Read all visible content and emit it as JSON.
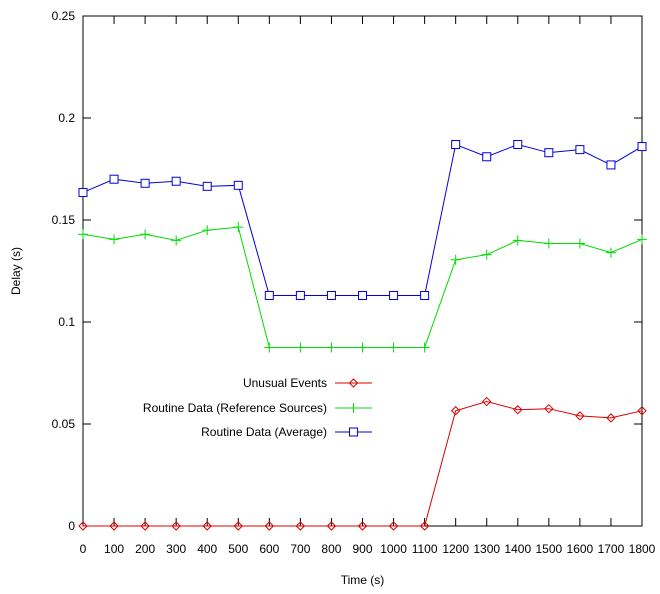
{
  "chart_data": {
    "type": "line",
    "title": "",
    "xlabel": "Time (s)",
    "ylabel": "Delay (s)",
    "xlim": [
      0,
      1800
    ],
    "ylim": [
      0,
      0.25
    ],
    "x": [
      0,
      100,
      200,
      300,
      400,
      500,
      600,
      700,
      800,
      900,
      1000,
      1100,
      1200,
      1300,
      1400,
      1500,
      1600,
      1700,
      1800
    ],
    "x_ticks": [
      "0",
      "100",
      "200",
      "300",
      "400",
      "500",
      "600",
      "700",
      "800",
      "900",
      "1000",
      "1100",
      "1200",
      "1300",
      "1400",
      "1500",
      "1600",
      "1700",
      "1800"
    ],
    "y_ticks": [
      {
        "value": 0,
        "label": "0"
      },
      {
        "value": 0.05,
        "label": "0.05"
      },
      {
        "value": 0.1,
        "label": "0.1"
      },
      {
        "value": 0.15,
        "label": "0.15"
      },
      {
        "value": 0.2,
        "label": "0.2"
      },
      {
        "value": 0.25,
        "label": "0.25"
      }
    ],
    "grid": false,
    "legend_position": "center-left",
    "series": [
      {
        "name": "Unusual Events",
        "color": "#dd0000",
        "marker": "diamond",
        "values": [
          0,
          0,
          0,
          0,
          0,
          0,
          0,
          0,
          0,
          0,
          0,
          0,
          0.0565,
          0.061,
          0.057,
          0.0575,
          0.054,
          0.053,
          0.0565
        ]
      },
      {
        "name": "Routine Data (Reference Sources)",
        "color": "#00dd00",
        "marker": "plus",
        "values": [
          0.143,
          0.1405,
          0.143,
          0.14,
          0.145,
          0.1465,
          0.0875,
          0.0875,
          0.0875,
          0.0875,
          0.0875,
          0.0875,
          0.1305,
          0.133,
          0.14,
          0.1385,
          0.1385,
          0.134,
          0.1405
        ]
      },
      {
        "name": "Routine Data (Average)",
        "color": "#0000dd",
        "marker": "square",
        "values": [
          0.1635,
          0.17,
          0.168,
          0.169,
          0.1665,
          0.167,
          0.113,
          0.113,
          0.113,
          0.113,
          0.113,
          0.113,
          0.187,
          0.181,
          0.187,
          0.183,
          0.1845,
          0.177,
          0.186
        ]
      }
    ]
  }
}
